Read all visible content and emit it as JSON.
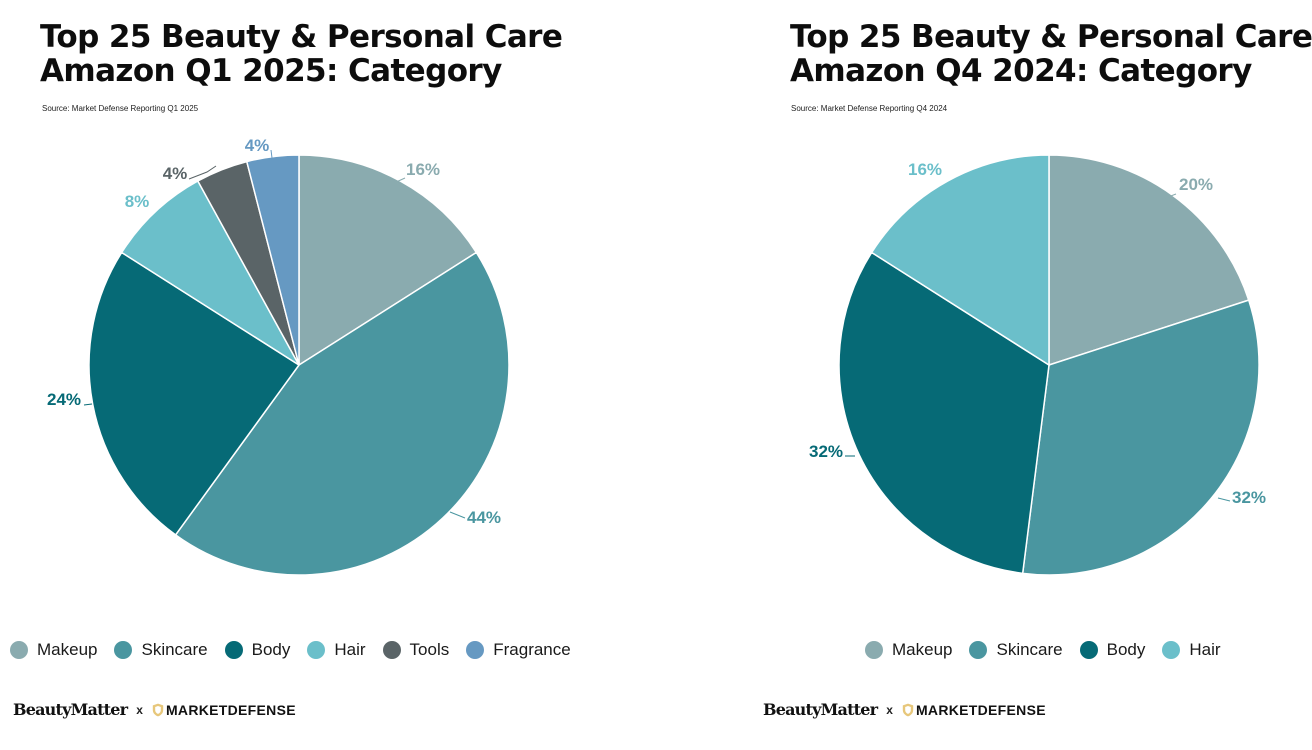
{
  "colors": {
    "Makeup": "#8aabaf",
    "Skincare": "#4a96a0",
    "Body": "#066a76",
    "Hair": "#6bbfca",
    "Tools": "#5a6467",
    "Fragrance": "#6699c2",
    "divider": "#ffffff"
  },
  "footer": {
    "brand_left": "BeautyMatter",
    "separator": "x",
    "brand_right": "MARKETDEFENSE",
    "brand_right_icon": "shield-icon"
  },
  "chart_data": [
    {
      "type": "pie",
      "title_lines": [
        "Top 25 Beauty & Personal Care",
        "Amazon Q1 2025: Category"
      ],
      "source": "Source: Market Defense Reporting Q1 2025",
      "legend_placement": "bottom",
      "legend": [
        "Makeup",
        "Skincare",
        "Body",
        "Hair",
        "Tools",
        "Fragrance"
      ],
      "slices": [
        {
          "label": "Makeup",
          "value": 16,
          "text": "16%"
        },
        {
          "label": "Skincare",
          "value": 44,
          "text": "44%"
        },
        {
          "label": "Body",
          "value": 24,
          "text": "24%"
        },
        {
          "label": "Hair",
          "value": 8,
          "text": "8%"
        },
        {
          "label": "Tools",
          "value": 4,
          "text": "4%"
        },
        {
          "label": "Fragrance",
          "value": 4,
          "text": "4%"
        }
      ]
    },
    {
      "type": "pie",
      "title_lines": [
        "Top 25 Beauty & Personal Care",
        "Amazon Q4 2024: Category"
      ],
      "source": "Source: Market Defense Reporting Q4 2024",
      "legend_placement": "bottom",
      "legend": [
        "Makeup",
        "Skincare",
        "Body",
        "Hair"
      ],
      "slices": [
        {
          "label": "Makeup",
          "value": 20,
          "text": "20%"
        },
        {
          "label": "Skincare",
          "value": 32,
          "text": "32%"
        },
        {
          "label": "Body",
          "value": 32,
          "text": "32%"
        },
        {
          "label": "Hair",
          "value": 16,
          "text": "16%"
        }
      ]
    }
  ]
}
